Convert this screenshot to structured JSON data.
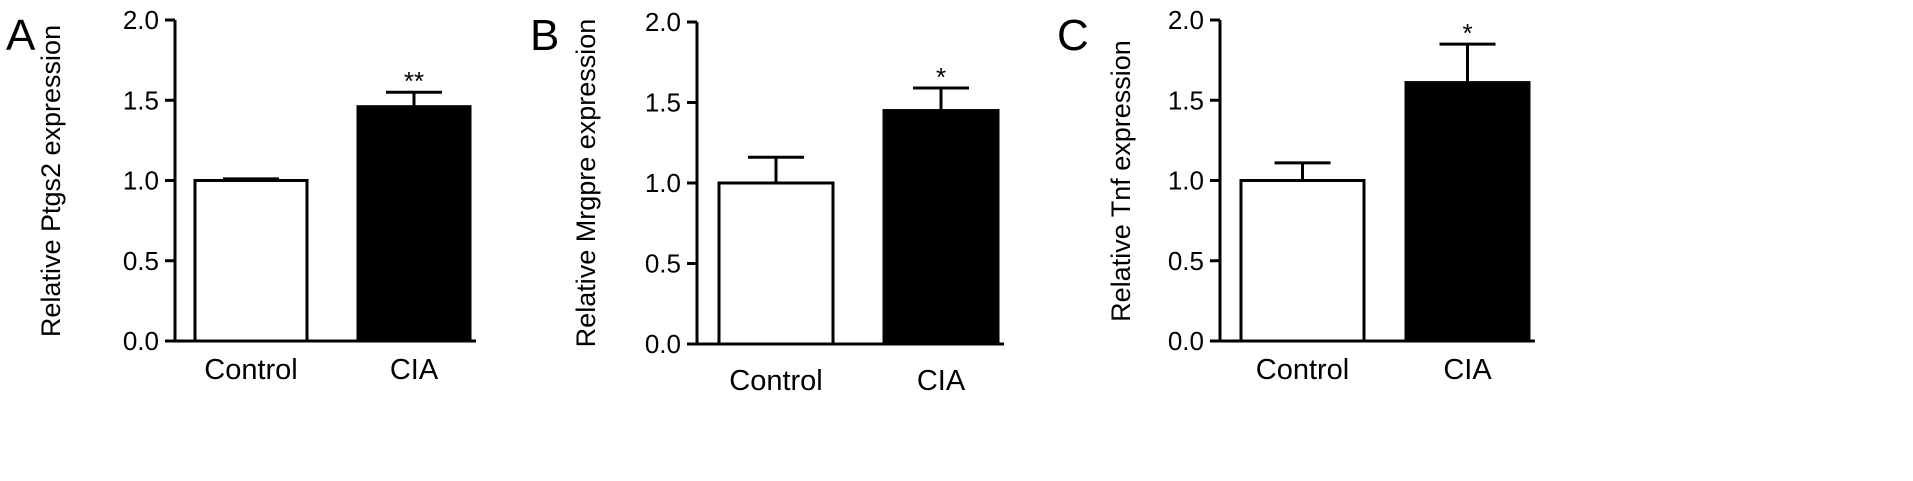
{
  "style": {
    "bar_fill_colors": [
      "#ffffff",
      "#000000"
    ],
    "axis_color": "#000000"
  },
  "chart_data": [
    {
      "panel": "A",
      "type": "bar",
      "categories": [
        "Control",
        "CIA"
      ],
      "values": [
        1.0,
        1.46
      ],
      "errors": [
        0.01,
        0.09
      ],
      "significance": [
        "",
        "**"
      ],
      "ylabel": "Relative Ptgs2 expression",
      "ylim": [
        0,
        2.0
      ],
      "yticks": [
        "0.0",
        "0.5",
        "1.0",
        "1.5",
        "2.0"
      ],
      "grid": false,
      "legend": "none"
    },
    {
      "panel": "B",
      "type": "bar",
      "categories": [
        "Control",
        "CIA"
      ],
      "values": [
        1.0,
        1.45
      ],
      "errors": [
        0.16,
        0.14
      ],
      "significance": [
        "",
        "*"
      ],
      "ylabel": "Relative Mrgpre expression",
      "ylim": [
        0,
        2.0
      ],
      "yticks": [
        "0.0",
        "0.5",
        "1.0",
        "1.5",
        "2.0"
      ],
      "grid": false,
      "legend": "none"
    },
    {
      "panel": "C",
      "type": "bar",
      "categories": [
        "Control",
        "CIA"
      ],
      "values": [
        1.0,
        1.61
      ],
      "errors": [
        0.11,
        0.24
      ],
      "significance": [
        "",
        "*"
      ],
      "ylabel": "Relative Tnf expression",
      "ylim": [
        0,
        2.0
      ],
      "yticks": [
        "0.0",
        "0.5",
        "1.0",
        "1.5",
        "2.0"
      ],
      "grid": false,
      "legend": "none"
    }
  ]
}
